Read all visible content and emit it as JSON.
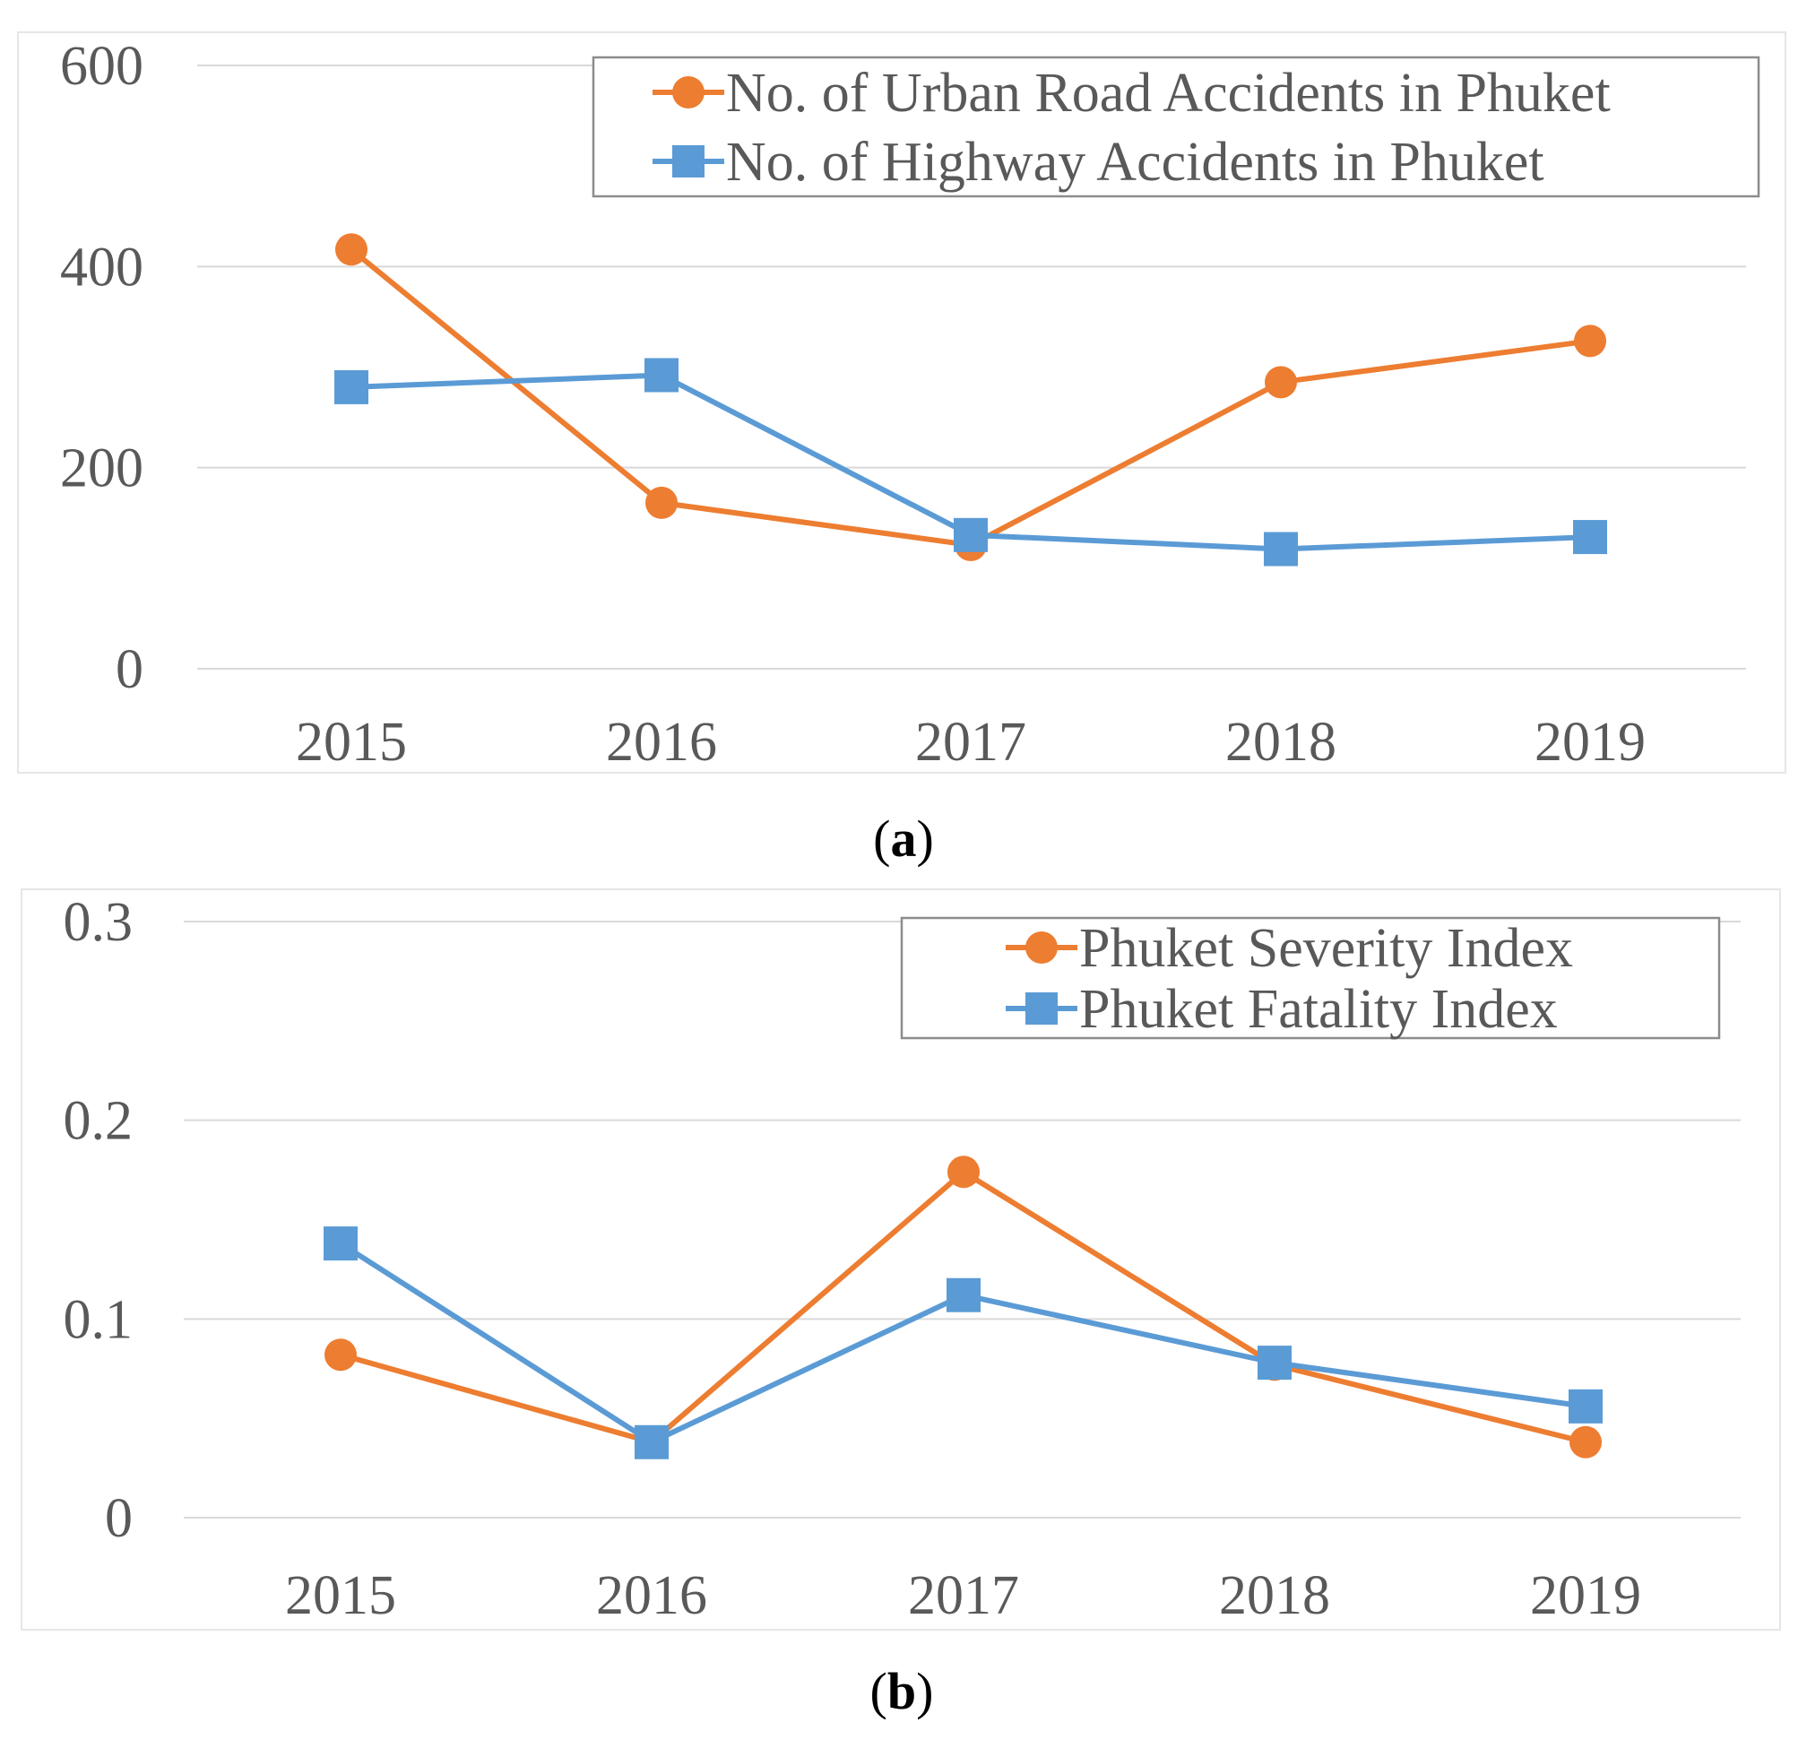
{
  "colors": {
    "orange": "#ED7D31",
    "blue": "#5B9BD5"
  },
  "chart_data": [
    {
      "type": "line",
      "panel_label": "a",
      "categories": [
        "2015",
        "2016",
        "2017",
        "2018",
        "2019"
      ],
      "ylim": [
        0,
        600
      ],
      "yticks": [
        "0",
        "200",
        "400",
        "600"
      ],
      "grid": true,
      "legend_position": "top-right",
      "series": [
        {
          "name": "No. of Urban Road Accidents in Phuket",
          "marker": "circle",
          "color": "#ED7D31",
          "values": [
            417,
            165,
            123,
            285,
            326
          ]
        },
        {
          "name": "No. of Highway Accidents in Phuket",
          "marker": "square",
          "color": "#5B9BD5",
          "values": [
            280,
            292,
            133,
            119,
            131
          ]
        }
      ]
    },
    {
      "type": "line",
      "panel_label": "b",
      "categories": [
        "2015",
        "2016",
        "2017",
        "2018",
        "2019"
      ],
      "ylim": [
        0,
        0.3
      ],
      "yticks": [
        "0",
        "0.1",
        "0.2",
        "0.3"
      ],
      "grid": true,
      "legend_position": "top-right",
      "series": [
        {
          "name": "Phuket Severity Index",
          "marker": "circle",
          "color": "#ED7D31",
          "values": [
            0.082,
            0.038,
            0.174,
            0.077,
            0.038
          ]
        },
        {
          "name": "Phuket Fatality Index",
          "marker": "square",
          "color": "#5B9BD5",
          "values": [
            0.138,
            0.038,
            0.112,
            0.078,
            0.056
          ]
        }
      ]
    }
  ]
}
